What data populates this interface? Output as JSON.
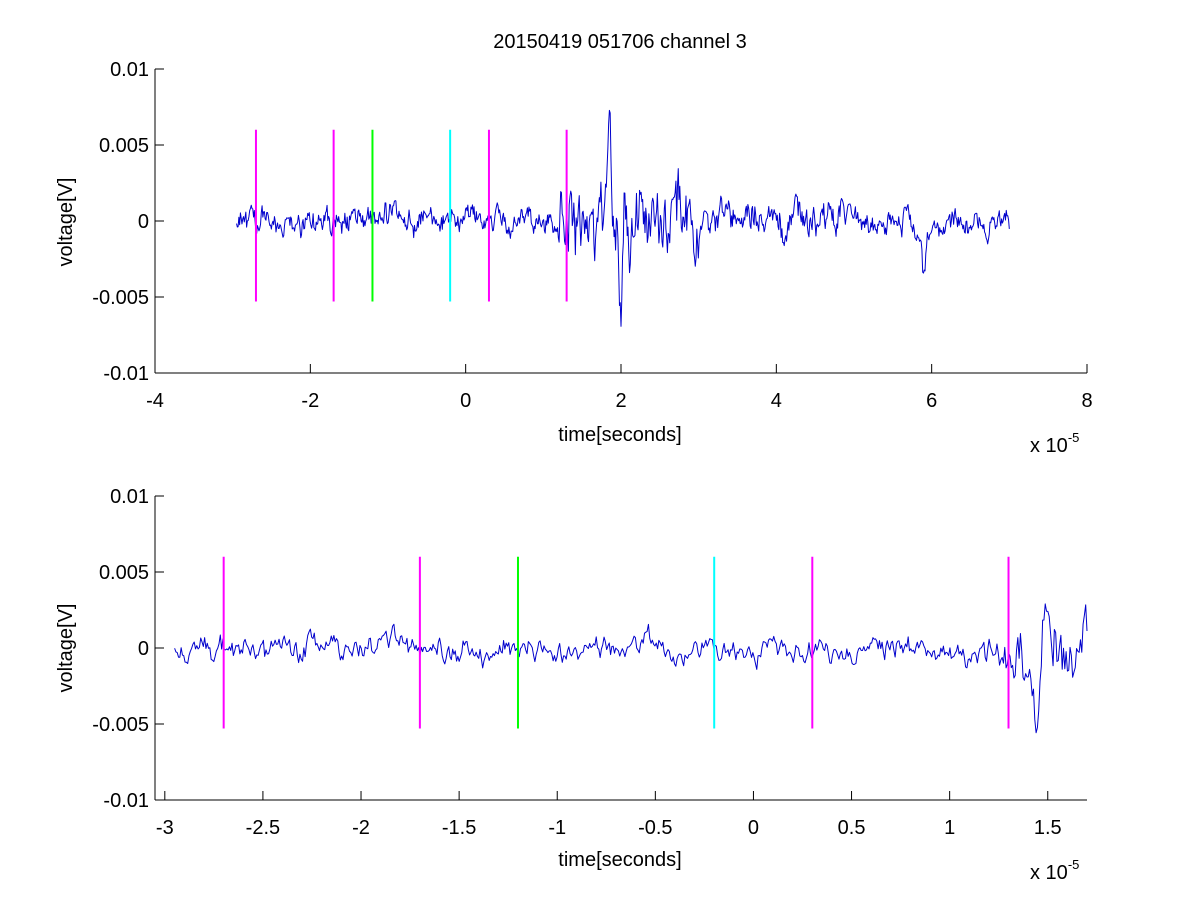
{
  "figure": {
    "title": "20150419 051706 channel 3"
  },
  "chart_data": [
    {
      "type": "line",
      "title": "20150419 051706 channel 3",
      "xlabel": "time[seconds]",
      "ylabel": "voltage[V]",
      "x_exponent_base": "x 10",
      "x_exponent": "-5",
      "xlim": [
        -4,
        8
      ],
      "ylim": [
        -0.01,
        0.01
      ],
      "xticks": [
        -4,
        -2,
        0,
        2,
        4,
        6,
        8
      ],
      "xtick_labels": [
        "-4",
        "-2",
        "0",
        "2",
        "4",
        "6",
        "8"
      ],
      "yticks": [
        -0.01,
        -0.005,
        0,
        0.005,
        0.01
      ],
      "ytick_labels": [
        "-0.01",
        "-0.005",
        "0",
        "0.005",
        "0.01"
      ],
      "grid": false,
      "series": [
        {
          "color": "#0000cc",
          "x_range": [
            -2.95,
            7.0
          ],
          "sample_count": 1000,
          "segments": [
            {
              "x_from": -2.95,
              "x_to": 1.2,
              "amplitude": 0.0012
            },
            {
              "x_from": 1.2,
              "x_to": 3.0,
              "amplitude": 0.0033
            },
            {
              "x_from": 3.0,
              "x_to": 5.0,
              "amplitude": 0.0016
            },
            {
              "x_from": 5.0,
              "x_to": 7.0,
              "amplitude": 0.0011
            }
          ],
          "peaks": [
            [
              1.85,
              0.0054
            ],
            [
              2.05,
              0.0045
            ],
            [
              2.0,
              -0.0048
            ],
            [
              5.9,
              -0.003
            ]
          ]
        }
      ],
      "markers": [
        {
          "x": -2.7,
          "color": "#ff00ff",
          "y_range": [
            -0.0053,
            0.006
          ]
        },
        {
          "x": -1.7,
          "color": "#ff00ff",
          "y_range": [
            -0.0053,
            0.006
          ]
        },
        {
          "x": -1.2,
          "color": "#00ff00",
          "y_range": [
            -0.0053,
            0.006
          ]
        },
        {
          "x": -0.2,
          "color": "#00ffff",
          "y_range": [
            -0.0053,
            0.006
          ]
        },
        {
          "x": 0.3,
          "color": "#ff00ff",
          "y_range": [
            -0.0053,
            0.006
          ]
        },
        {
          "x": 1.3,
          "color": "#ff00ff",
          "y_range": [
            -0.0053,
            0.006
          ]
        }
      ]
    },
    {
      "type": "line",
      "xlabel": "time[seconds]",
      "ylabel": "voltage[V]",
      "x_exponent_base": "x 10",
      "x_exponent": "-5",
      "xlim": [
        -3.05,
        1.7
      ],
      "ylim": [
        -0.01,
        0.01
      ],
      "xticks": [
        -3,
        -2.5,
        -2,
        -1.5,
        -1,
        -0.5,
        0,
        0.5,
        1,
        1.5
      ],
      "xtick_labels": [
        "-3",
        "-2.5",
        "-2",
        "-1.5",
        "-1",
        "-0.5",
        "0",
        "0.5",
        "1",
        "1.5"
      ],
      "yticks": [
        -0.01,
        -0.005,
        0,
        0.005,
        0.01
      ],
      "ytick_labels": [
        "-0.01",
        "-0.005",
        "0",
        "0.005",
        "0.01"
      ],
      "grid": false,
      "series": [
        {
          "color": "#0000cc",
          "x_range": [
            -2.95,
            1.7
          ],
          "sample_count": 700,
          "segments": [
            {
              "x_from": -2.95,
              "x_to": 1.25,
              "amplitude": 0.0011
            },
            {
              "x_from": 1.25,
              "x_to": 1.7,
              "amplitude": 0.0028
            }
          ],
          "peaks": [
            [
              1.48,
              0.0035
            ],
            [
              1.45,
              -0.004
            ],
            [
              1.7,
              0.0027
            ]
          ]
        }
      ],
      "markers": [
        {
          "x": -2.7,
          "color": "#ff00ff",
          "y_range": [
            -0.0053,
            0.006
          ]
        },
        {
          "x": -1.7,
          "color": "#ff00ff",
          "y_range": [
            -0.0053,
            0.006
          ]
        },
        {
          "x": -1.2,
          "color": "#00ff00",
          "y_range": [
            -0.0053,
            0.006
          ]
        },
        {
          "x": -0.2,
          "color": "#00ffff",
          "y_range": [
            -0.0053,
            0.006
          ]
        },
        {
          "x": 0.3,
          "color": "#ff00ff",
          "y_range": [
            -0.0053,
            0.006
          ]
        },
        {
          "x": 1.3,
          "color": "#ff00ff",
          "y_range": [
            -0.0053,
            0.006
          ]
        }
      ]
    }
  ]
}
